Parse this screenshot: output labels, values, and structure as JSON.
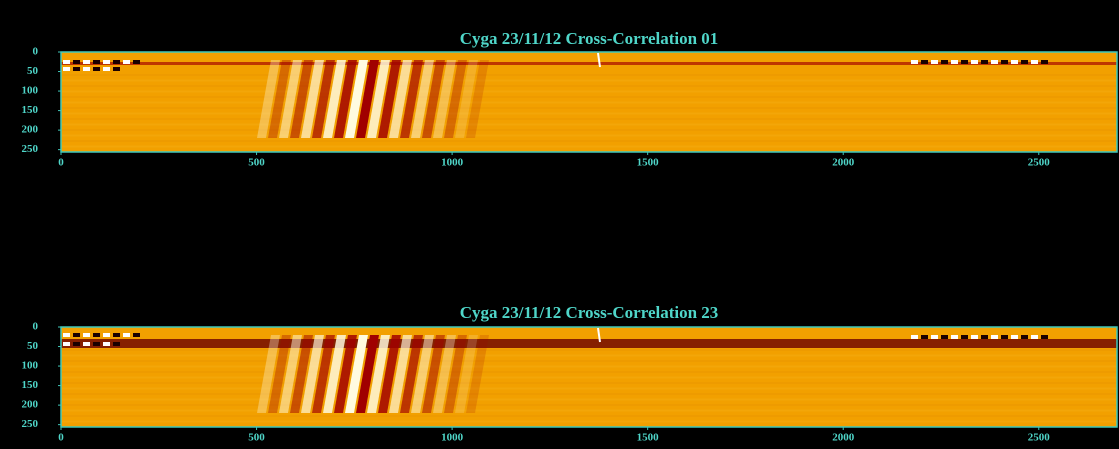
{
  "chart_data": [
    {
      "type": "heatmap",
      "title": "Cyga 23/11/12 Cross-Correlation 01",
      "xlim": [
        0,
        2700
      ],
      "xticks": [
        0,
        500,
        1000,
        1500,
        2000,
        2500
      ],
      "ylim": [
        0,
        256
      ],
      "yticks": [
        0,
        50,
        100,
        150,
        200,
        250
      ]
    },
    {
      "type": "heatmap",
      "title": "Cyga 23/11/12 Cross-Correlation 23",
      "xlim": [
        0,
        2700
      ],
      "xticks": [
        0,
        500,
        1000,
        1500,
        2000,
        2500
      ],
      "ylim": [
        0,
        256
      ],
      "yticks": [
        0,
        50,
        100,
        150,
        200,
        250
      ]
    }
  ]
}
